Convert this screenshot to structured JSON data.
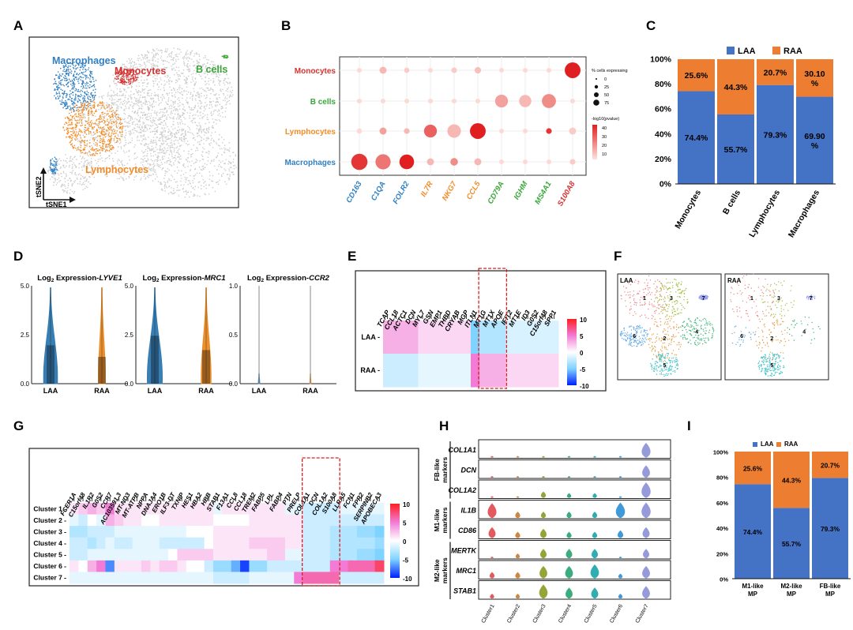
{
  "panels": {
    "A": {
      "letter": "A",
      "labels": {
        "macrophages": "Macrophages",
        "monocytes": "Monocytes",
        "bcells": "B cells",
        "lymphocytes": "Lymphocytes"
      },
      "axis_y": "tSNE2",
      "axis_x": "tSNE1",
      "colors": {
        "macrophages": "#2f7fc1",
        "monocytes": "#d63230",
        "bcells": "#3aa63a",
        "lymphocytes": "#f28c28",
        "other": "#cccccc"
      }
    },
    "B": {
      "letter": "B",
      "legend_size_title": "% cells expressing",
      "legend_sizes": [
        "0",
        "25",
        "50",
        "75"
      ],
      "legend_color_title": "-log10(pvalue)",
      "legend_color_ticks": [
        "40",
        "30",
        "20",
        "10"
      ]
    },
    "C": {
      "letter": "C",
      "legend": [
        "LAA",
        "RAA"
      ],
      "yticks": [
        "0%",
        "20%",
        "40%",
        "60%",
        "80%",
        "100%"
      ]
    },
    "D": {
      "letter": "D",
      "titles": [
        {
          "prefix": "Log",
          "sub": "2",
          "middle": " Expression-",
          "gene": "LYVE1"
        },
        {
          "prefix": "Log",
          "sub": "2",
          "middle": " Expression-",
          "gene": "MRC1"
        },
        {
          "prefix": "Log",
          "sub": "2",
          "middle": " Expression-",
          "gene": "CCR2"
        }
      ],
      "yticks_1": [
        "5.0",
        "2.5",
        "0.0"
      ],
      "yticks_2": [
        "5.0",
        "2.5",
        "0.0"
      ],
      "yticks_3": [
        "1.0",
        "0.5",
        "0.0"
      ],
      "groups": [
        "LAA",
        "RAA"
      ]
    },
    "E": {
      "letter": "E",
      "genes": [
        "TCAP",
        "CCL18",
        "ACTC1",
        "DCN",
        "MYL7",
        "GSN",
        "EMP1",
        "THBD",
        "CRYAB",
        "MGP",
        "ITLN1",
        "MT1G",
        "MT1X",
        "APOE",
        "IFIT2",
        "MT1E",
        "ID3",
        "G0S2",
        "C15orf48",
        "SPP1"
      ],
      "rows": [
        "LAA -",
        "RAA -"
      ],
      "scale": [
        "10",
        "5",
        "0",
        "-5",
        "-10"
      ]
    },
    "F": {
      "letter": "F",
      "tags": [
        "LAA",
        "RAA"
      ],
      "cluster_numbers": [
        "1",
        "2",
        "3",
        "4",
        "5",
        "6",
        "7"
      ]
    },
    "G": {
      "letter": "G",
      "genes": [
        "FCER1A",
        "C15orf48",
        "IL1R2",
        "G0S2",
        "CCR7",
        "AC103591.3",
        "MT-ND3",
        "MT-ATPB",
        "NPPA",
        "DNAJA4",
        "ERO1B",
        "ILF3-DT",
        "TXNIP",
        "HES1",
        "HBA2",
        "HBB",
        "STAB1",
        "F13A1",
        "CCL8",
        "CCL18",
        "TREM2",
        "FABP5",
        "LPL",
        "FABP4",
        "PTN",
        "PRELP",
        "COL1A1",
        "DCN",
        "COL1A2",
        "S100A8",
        "LLRA5",
        "FCN1",
        "FPR2",
        "SERPINB2",
        "APOBECA3"
      ],
      "rows": [
        "Cluster 1 -",
        "Cluster 2 -",
        "Cluster 3 -",
        "Cluster 4 -",
        "Cluster 5 -",
        "Cluster 6 -",
        "Cluster 7 -"
      ],
      "scale": [
        "10",
        "5",
        "0",
        "-5",
        "-10"
      ]
    },
    "H": {
      "letter": "H",
      "genes": [
        "COL1A1",
        "DCN",
        "COL1A2",
        "IL1B",
        "CD86",
        "MERTK",
        "MRC1",
        "STAB1"
      ],
      "groups": [
        "FB-like markers",
        "M1-like markers",
        "M2-like markers"
      ],
      "clusters": [
        "Cluster1",
        "Cluster2",
        "Cluster3",
        "Cluster4",
        "Cluster5",
        "Cluster6",
        "Cluster7"
      ],
      "cluster_colors": [
        "#e0474c",
        "#c9792e",
        "#8a9a1f",
        "#25a36f",
        "#1aa4a8",
        "#2a8fd6",
        "#8a8fd6"
      ]
    },
    "I": {
      "letter": "I",
      "legend": [
        "LAA",
        "RAA"
      ],
      "yticks": [
        "0%",
        "20%",
        "40%",
        "60%",
        "80%",
        "100%"
      ]
    }
  },
  "chart_data": [
    {
      "type": "bar",
      "title": "C",
      "stacked": true,
      "categories": [
        "Monocytes",
        "B cells",
        "Lymphocytes",
        "Macrophages"
      ],
      "series": [
        {
          "name": "LAA",
          "color": "#4472c4",
          "values": [
            74.4,
            55.7,
            79.3,
            69.9
          ],
          "labels": [
            "74.4%",
            "55.7%",
            "79.3%",
            "69.90\n%"
          ]
        },
        {
          "name": "RAA",
          "color": "#ed7d31",
          "values": [
            25.6,
            44.3,
            20.7,
            30.1
          ],
          "labels": [
            "25.6%",
            "44.3%",
            "20.7%",
            "30.10\n%"
          ]
        }
      ],
      "bar_heights": [
        52,
        28,
        54,
        70
      ],
      "ylim": [
        0,
        100
      ]
    },
    {
      "type": "bar",
      "title": "I",
      "stacked": true,
      "categories": [
        "M1-like\nMP",
        "M2-like\nMP",
        "FB-like\nMP"
      ],
      "series": [
        {
          "name": "LAA",
          "color": "#4472c4",
          "values": [
            74.4,
            55.7,
            79.3
          ],
          "labels": [
            "74.4%",
            "55.7%",
            "79.3%"
          ]
        },
        {
          "name": "RAA",
          "color": "#ed7d31",
          "values": [
            25.6,
            44.3,
            20.7
          ],
          "labels": [
            "25.6%",
            "44.3%",
            "20.7%"
          ]
        }
      ],
      "ylim": [
        0,
        100
      ]
    },
    {
      "type": "scatter",
      "title": "B dot plot",
      "x_genes": [
        "CD163",
        "C1QA",
        "FOLR2",
        "IL7R",
        "NKG7",
        "CCL5",
        "CD79A",
        "IGHM",
        "MS4A1",
        "S100A8"
      ],
      "x_gene_colors": [
        "#2f7fc1",
        "#2f7fc1",
        "#2f7fc1",
        "#f28c28",
        "#f28c28",
        "#f28c28",
        "#3aa63a",
        "#3aa63a",
        "#3aa63a",
        "#d63230"
      ],
      "y_groups": [
        "Macrophages",
        "Lymphocytes",
        "B cells",
        "Monocytes"
      ],
      "y_group_colors": [
        "#2f7fc1",
        "#f28c28",
        "#3aa63a",
        "#d63230"
      ],
      "pct_expressing": [
        [
          70,
          60,
          55,
          8,
          10,
          8,
          2,
          2,
          2,
          4
        ],
        [
          3,
          8,
          4,
          40,
          45,
          65,
          2,
          2,
          4,
          8
        ],
        [
          2,
          2,
          2,
          2,
          2,
          2,
          40,
          35,
          50,
          2
        ],
        [
          2,
          8,
          3,
          2,
          4,
          6,
          2,
          2,
          2,
          65
        ]
      ],
      "neg_log10_p": [
        [
          40,
          25,
          45,
          10,
          20,
          10,
          2,
          2,
          2,
          5
        ],
        [
          2,
          15,
          10,
          30,
          10,
          45,
          2,
          2,
          40,
          5
        ],
        [
          2,
          2,
          2,
          2,
          2,
          2,
          15,
          10,
          20,
          2
        ],
        [
          2,
          10,
          5,
          2,
          5,
          8,
          2,
          2,
          2,
          45
        ]
      ]
    },
    {
      "type": "heatmap",
      "title": "E",
      "x": [
        "TCAP",
        "CCL18",
        "ACTC1",
        "DCN",
        "MYL7",
        "GSN",
        "EMP1",
        "THBD",
        "CRYAB",
        "MGP",
        "ITLN1",
        "MT1G",
        "MT1X",
        "APOE",
        "IFIT2",
        "MT1E",
        "ID3",
        "G0S2",
        "C15orf48",
        "SPP1"
      ],
      "y": [
        "LAA",
        "RAA"
      ],
      "values": [
        [
          3,
          3,
          3,
          3,
          1.5,
          1.5,
          1.5,
          1.5,
          1.5,
          1.5,
          -5,
          -3,
          -3,
          -3,
          -1.5,
          -1.5,
          -1.5,
          -1.5,
          -1.5,
          -1.5
        ],
        [
          -2,
          -2,
          -2,
          -2,
          -1,
          -1,
          -1,
          -1,
          -1,
          -1,
          5,
          3,
          3,
          3,
          1.5,
          1.5,
          1.5,
          1.5,
          1.5,
          1.5
        ]
      ],
      "zlim": [
        -10,
        10
      ]
    },
    {
      "type": "heatmap",
      "title": "G",
      "x": [
        "FCER1A",
        "C15orf48",
        "IL1R2",
        "G0S2",
        "CCR7",
        "AC103591.3",
        "MT-ND3",
        "MT-ATPB",
        "NPPA",
        "DNAJA4",
        "ERO1B",
        "ILF3-DT",
        "TXNIP",
        "HES1",
        "HBA2",
        "HBB",
        "STAB1",
        "F13A1",
        "CCL8",
        "CCL18",
        "TREM2",
        "FABP5",
        "LPL",
        "FABP4",
        "PTN",
        "PRELP",
        "COL1A1",
        "DCN",
        "COL1A2",
        "S100A8",
        "LLRA5",
        "FCN1",
        "FPR2",
        "SERPINB2",
        "APOBECA3"
      ],
      "y": [
        "Cluster 1",
        "Cluster 2",
        "Cluster 3",
        "Cluster 4",
        "Cluster 5",
        "Cluster 6",
        "Cluster 7"
      ],
      "values": [
        [
          1,
          2,
          3,
          2,
          5,
          1,
          1,
          1,
          1,
          1,
          1,
          1,
          1,
          1,
          1,
          1,
          -1,
          1,
          1,
          1,
          1,
          1,
          1,
          1,
          -1,
          -1,
          -2,
          -2,
          -2,
          -2,
          -1,
          -1,
          -1,
          -1,
          -1
        ],
        [
          -1,
          -2,
          0,
          -1,
          3,
          2,
          1,
          1,
          0,
          0,
          1,
          1,
          1,
          1,
          1,
          1,
          0,
          0,
          0,
          0,
          1,
          1,
          1,
          1,
          1,
          1,
          -2,
          -2,
          -2,
          -2,
          -2,
          -2,
          -2,
          -2,
          -2
        ],
        [
          -3,
          -3,
          -2,
          -2,
          -2,
          -1,
          -1,
          -1,
          -1,
          -1,
          -1,
          -1,
          -1,
          0,
          0,
          0,
          1,
          1,
          1,
          1,
          1,
          1,
          1,
          1,
          1,
          1,
          -2,
          -2,
          -2,
          -3,
          -3,
          -3,
          -4,
          -4,
          -5
        ],
        [
          -2,
          -2,
          -3,
          -2,
          -1,
          -2,
          -2,
          -1,
          -1,
          -1,
          -2,
          -2,
          -2,
          -2,
          -2,
          0,
          1,
          1,
          1,
          1,
          2,
          2,
          2,
          2,
          1,
          1,
          -2,
          -2,
          -2,
          -3,
          -3,
          -3,
          -3,
          -3,
          -4
        ],
        [
          -2,
          -2,
          -1,
          -1,
          -1,
          -1,
          -1,
          -1,
          -1,
          -1,
          -1,
          0,
          2,
          2,
          2,
          2,
          1,
          1,
          1,
          1,
          1,
          1,
          2,
          2,
          -1,
          -1,
          -2,
          -2,
          -2,
          -3,
          -3,
          -3,
          -4,
          -4,
          -5
        ],
        [
          1,
          0,
          3,
          5,
          -7,
          1,
          1,
          1,
          2,
          1,
          2,
          2,
          1,
          0,
          0,
          -2,
          -4,
          -4,
          -6,
          -9,
          -4,
          -4,
          -2,
          -2,
          -2,
          -2,
          -2,
          -2,
          -2,
          5,
          5,
          6,
          6,
          6,
          8
        ],
        [
          -1,
          -1,
          -1,
          -1,
          -1,
          -1,
          -1,
          -1,
          -1,
          -1,
          -1,
          -1,
          -1,
          -1,
          -1,
          -1,
          -2,
          -2,
          -2,
          -2,
          -1,
          -1,
          -1,
          -1,
          -1,
          5,
          6,
          6,
          6,
          6,
          -2,
          -2,
          -2,
          -2,
          -2
        ]
      ],
      "zlim": [
        -10,
        10
      ]
    }
  ]
}
